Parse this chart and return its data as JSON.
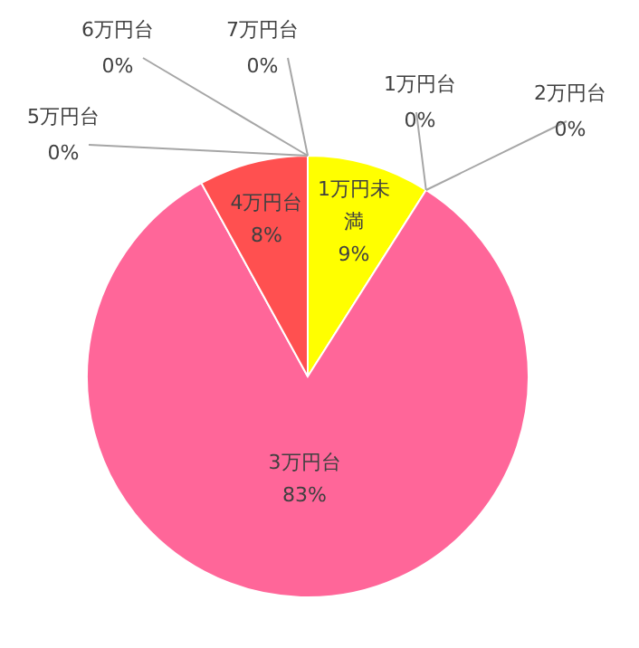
{
  "chart_data": {
    "type": "pie",
    "categories": [
      "1万円未満",
      "1万円台",
      "2万円台",
      "3万円台",
      "4万円台",
      "5万円台",
      "6万円台",
      "7万円台"
    ],
    "values": [
      9,
      0,
      0,
      83,
      8,
      0,
      0,
      0
    ],
    "value_labels": [
      "9%",
      "0%",
      "0%",
      "83%",
      "8%",
      "0%",
      "0%",
      "0%"
    ],
    "colors": [
      "#ffff00",
      "#ffc000",
      "#92d050",
      "#ff6699",
      "#ff5050",
      "#00b0f0",
      "#7030a0",
      "#a5a5a5"
    ]
  }
}
